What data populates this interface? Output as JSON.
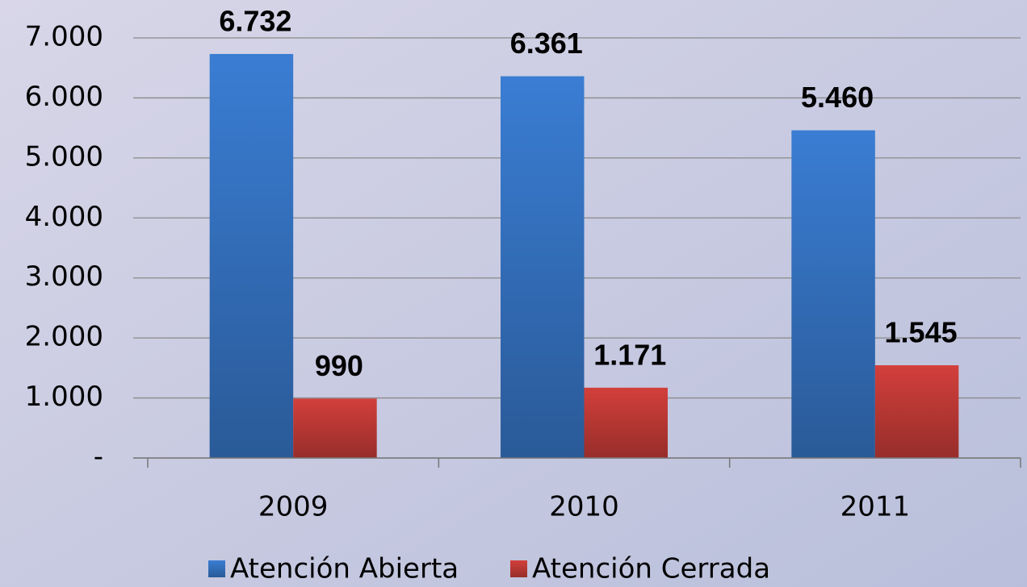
{
  "chart_data": {
    "type": "bar",
    "categories": [
      "2009",
      "2010",
      "2011"
    ],
    "series": [
      {
        "name": "Atención Abierta",
        "color": "#3a7dd3",
        "values": [
          6732,
          6361,
          5460
        ],
        "value_labels": [
          "6.732",
          "6.361",
          "5.460"
        ]
      },
      {
        "name": "Atención Cerrada",
        "color": "#d23f3b",
        "values": [
          990,
          1171,
          1545
        ],
        "value_labels": [
          "990",
          "1.171",
          "1.545"
        ]
      }
    ],
    "ylim": [
      0,
      7000
    ],
    "yticks": [
      {
        "value": 0,
        "label": "-"
      },
      {
        "value": 1000,
        "label": "1.000"
      },
      {
        "value": 2000,
        "label": "2.000"
      },
      {
        "value": 3000,
        "label": "3.000"
      },
      {
        "value": 4000,
        "label": "4.000"
      },
      {
        "value": 5000,
        "label": "5.000"
      },
      {
        "value": 6000,
        "label": "6.000"
      },
      {
        "value": 7000,
        "label": "7.000"
      }
    ],
    "grid": true,
    "legend": "bottom"
  }
}
